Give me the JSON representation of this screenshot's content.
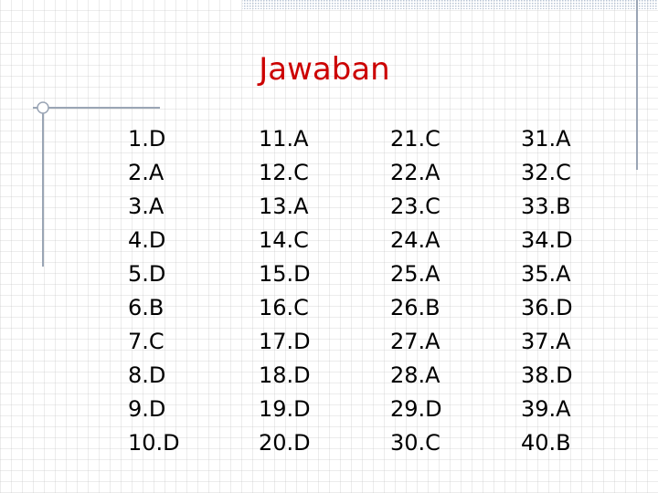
{
  "title": "Jawaban",
  "columns": [
    [
      "1.D",
      "2.A",
      "3.A",
      "4.D",
      "5.D",
      "6.B",
      "7.C",
      "8.D",
      "9.D",
      "10.D"
    ],
    [
      "11.A",
      "12.C",
      "13.A",
      "14.C",
      "15.D",
      "16.C",
      "17.D",
      "18.D",
      "19.D",
      "20.D"
    ],
    [
      "21.C",
      "22.A",
      "23.C",
      "24.A",
      "25.A",
      "26.B",
      "27.A",
      "28.A",
      "29.D",
      "30.C"
    ],
    [
      "31.A",
      "32.C",
      "33.B",
      "34.D",
      "35.A",
      "36.D",
      "37.A",
      "38.D",
      "39.A",
      "40.B"
    ]
  ]
}
